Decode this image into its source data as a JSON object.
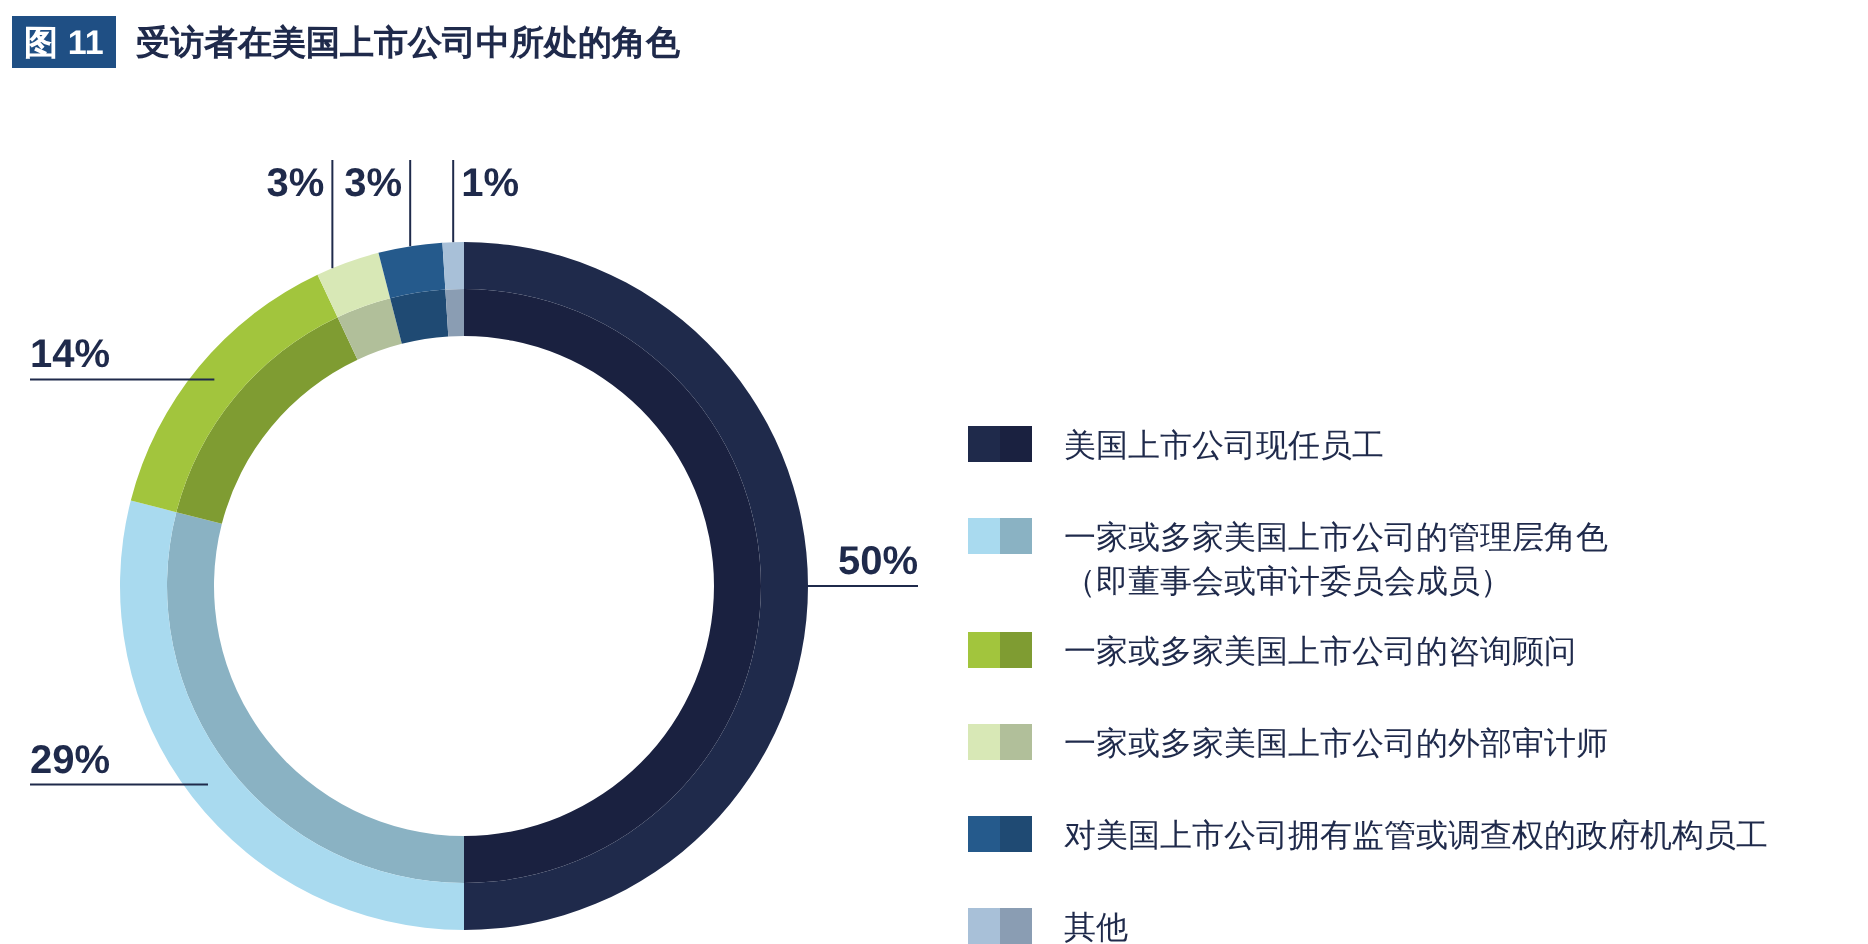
{
  "chart_data": {
    "type": "donut",
    "title": "受访者在美国上市公司中所处的角色",
    "annotations": [
      "图 11"
    ],
    "categories": [
      "美国上市公司现任员工",
      "一家或多家美国上市公司的管理层角色（即董事会或审计委员会成员）",
      "一家或多家美国上市公司的咨询顾问",
      "一家或多家美国上市公司的外部审计师",
      "对美国上市公司拥有监管或调查权的政府机构员工",
      "其他"
    ],
    "series": [
      {
        "values": [
          50,
          29,
          14,
          3,
          3,
          1
        ],
        "colors": [
          "#1a2140",
          "#8ab2c3",
          "#7f9c32",
          "#b1bf9a",
          "#1f4a73",
          "#8a9db3"
        ]
      },
      {
        "values": [
          50,
          29,
          14,
          3,
          3,
          1
        ],
        "colors": [
          "#1f2a4b",
          "#a9daef",
          "#a2c53d",
          "#d8e8b6",
          "#255a8c",
          "#a8c0d8"
        ],
        "value_labels": [
          "50%",
          "29%",
          "14%",
          "3%",
          "3%",
          "1%"
        ]
      }
    ],
    "legend": "right"
  }
}
